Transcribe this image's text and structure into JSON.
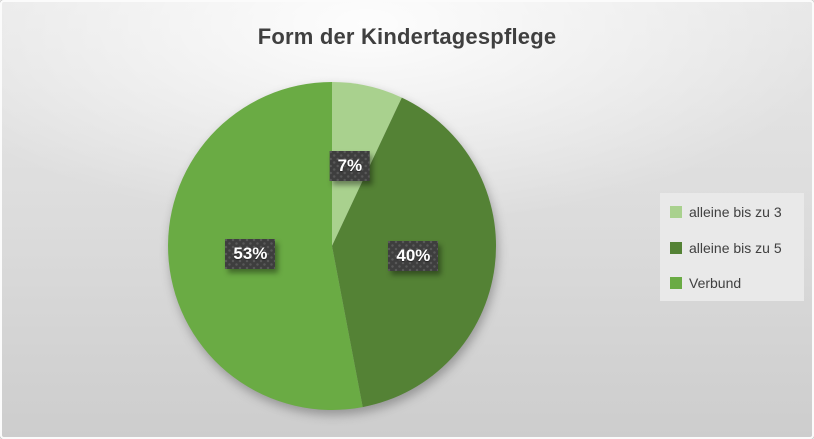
{
  "chart_data": {
    "type": "pie",
    "title": "Form der Kindertagespflege",
    "legend_position": "right",
    "data_labels": "percent",
    "direction": "clockwise",
    "start_angle_deg": 0,
    "slices": [
      {
        "label": "alleine bis zu 3",
        "value": 7,
        "display": "7%",
        "color": "#a9d18e"
      },
      {
        "label": "alleine bis zu 5",
        "value": 40,
        "display": "40%",
        "color": "#548235"
      },
      {
        "label": "Verbund",
        "value": 53,
        "display": "53%",
        "color": "#6aab44"
      }
    ],
    "style": {
      "title_color": "#3f3f3f",
      "legend_text_color": "#404040",
      "legend_background": "#e9e9e9",
      "label_box_background": "#3e3e3e",
      "label_text_color": "#ffffff"
    }
  }
}
